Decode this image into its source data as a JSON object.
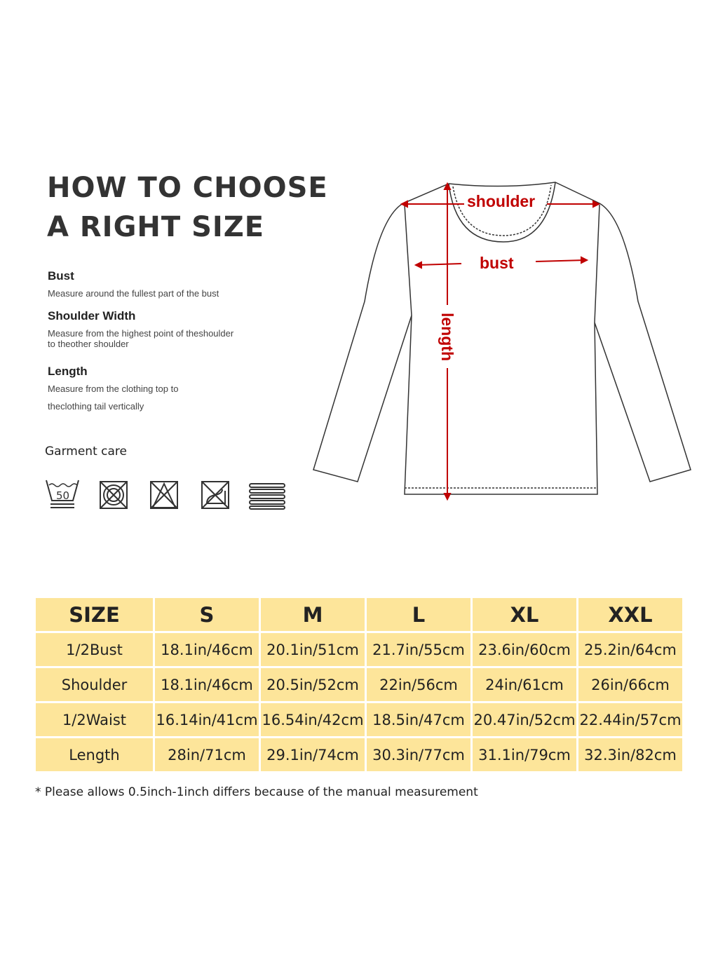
{
  "title": {
    "line1": "HOW TO CHOOSE",
    "line2": "A RIGHT SIZE"
  },
  "sections": [
    {
      "heading": "Bust",
      "text": [
        "Measure around the fullest part of the bust"
      ]
    },
    {
      "heading": "Shoulder Width",
      "text": [
        "Measure from the highest point of theshoulder",
        "to theother shoulder"
      ]
    },
    {
      "heading": "Length",
      "text": [
        "Measure from the clothing top to",
        "theclothing tail vertically"
      ]
    }
  ],
  "garment_care": {
    "label": "Garment care",
    "wash_temp": "50",
    "icons": [
      "wash-50-icon",
      "do-not-tumble-dry-icon",
      "do-not-bleach-icon",
      "do-not-iron-icon",
      "flat-dry-icon"
    ]
  },
  "diagram": {
    "shoulder": "shoulder",
    "bust": "bust",
    "length": "length",
    "arrow_color": "#c00000"
  },
  "table": {
    "headers": [
      "SIZE",
      "S",
      "M",
      "L",
      "XL",
      "XXL"
    ],
    "rows": [
      [
        "1/2Bust",
        "18.1in/46cm",
        "20.1in/51cm",
        "21.7in/55cm",
        "23.6in/60cm",
        "25.2in/64cm"
      ],
      [
        "Shoulder",
        "18.1in/46cm",
        "20.5in/52cm",
        "22in/56cm",
        "24in/61cm",
        "26in/66cm"
      ],
      [
        "1/2Waist",
        "16.14in/41cm",
        "16.54in/42cm",
        "18.5in/47cm",
        "20.47in/52cm",
        "22.44in/57cm"
      ],
      [
        "Length",
        "28in/71cm",
        "29.1in/74cm",
        "30.3in/77cm",
        "31.1in/79cm",
        "32.3in/82cm"
      ]
    ],
    "cell_color": "#fde59a"
  },
  "note": "* Please allows 0.5inch-1inch differs because of the manual measurement"
}
